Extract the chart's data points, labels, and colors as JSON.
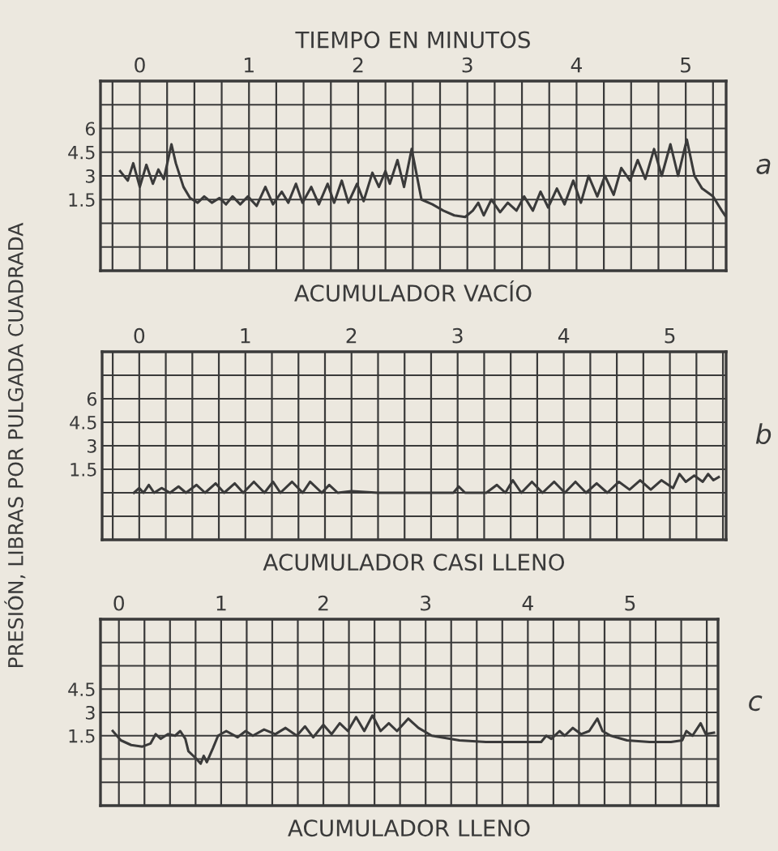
{
  "chart_data": [
    {
      "type": "line",
      "title": "TIEMPO EN MINUTOS",
      "xlabel": "ACUMULADOR VACÍO",
      "annotations": [
        "a"
      ],
      "grid": true,
      "line_style": "solid",
      "xlim": [
        -0.36,
        5.37
      ],
      "ylim": [
        -3,
        9
      ],
      "xticks": [
        {
          "value": -0.25,
          "label": null
        },
        0,
        {
          "value": 0.25,
          "label": null
        },
        {
          "value": 0.5,
          "label": null
        },
        {
          "value": 0.75,
          "label": null
        },
        1,
        {
          "value": 1.25,
          "label": null
        },
        {
          "value": 1.5,
          "label": null
        },
        {
          "value": 1.75,
          "label": null
        },
        2,
        {
          "value": 2.25,
          "label": null
        },
        {
          "value": 2.5,
          "label": null
        },
        {
          "value": 2.75,
          "label": null
        },
        3,
        {
          "value": 3.25,
          "label": null
        },
        {
          "value": 3.5,
          "label": null
        },
        {
          "value": 3.75,
          "label": null
        },
        4,
        {
          "value": 4.25,
          "label": null
        },
        {
          "value": 4.5,
          "label": null
        },
        {
          "value": 4.75,
          "label": null
        },
        5,
        {
          "value": 5.25,
          "label": null
        }
      ],
      "yticks": [
        {
          "value": -1.5,
          "label": null
        },
        {
          "value": 0,
          "label": null
        },
        1.5,
        3,
        4.5,
        6,
        {
          "value": 7.5,
          "label": null
        }
      ],
      "series": [
        {
          "color": "#3a3a3a",
          "x": [
            -0.18,
            -0.11,
            -0.06,
            0.0,
            0.06,
            0.12,
            0.17,
            0.22,
            0.29,
            0.33,
            0.4,
            0.46,
            0.53,
            0.59,
            0.66,
            0.73,
            0.79,
            0.85,
            0.92,
            0.99,
            1.07,
            1.15,
            1.22,
            1.3,
            1.36,
            1.43,
            1.49,
            1.57,
            1.64,
            1.72,
            1.78,
            1.85,
            1.91,
            1.99,
            2.05,
            2.13,
            2.19,
            2.25,
            2.29,
            2.36,
            2.42,
            2.49,
            2.58,
            2.68,
            2.78,
            2.88,
            2.98,
            3.05,
            3.1,
            3.15,
            3.22,
            3.3,
            3.37,
            3.45,
            3.52,
            3.6,
            3.67,
            3.74,
            3.82,
            3.89,
            3.97,
            4.04,
            4.11,
            4.19,
            4.26,
            4.34,
            4.41,
            4.49,
            4.56,
            4.63,
            4.71,
            4.78,
            4.86,
            4.93,
            5.01,
            5.08,
            5.15,
            5.25,
            5.33,
            5.36
          ],
          "values": [
            3.3,
            2.7,
            3.8,
            2.3,
            3.7,
            2.5,
            3.4,
            2.8,
            5.0,
            3.8,
            2.3,
            1.6,
            1.3,
            1.7,
            1.3,
            1.6,
            1.2,
            1.7,
            1.2,
            1.7,
            1.1,
            2.3,
            1.2,
            2.0,
            1.3,
            2.5,
            1.3,
            2.3,
            1.2,
            2.5,
            1.3,
            2.7,
            1.3,
            2.5,
            1.4,
            3.2,
            2.3,
            3.3,
            2.5,
            4.0,
            2.3,
            4.7,
            1.5,
            1.2,
            0.8,
            0.5,
            0.4,
            0.8,
            1.3,
            0.5,
            1.5,
            0.7,
            1.3,
            0.8,
            1.7,
            0.8,
            2.0,
            1.0,
            2.2,
            1.2,
            2.7,
            1.3,
            3.0,
            1.7,
            3.0,
            1.8,
            3.5,
            2.7,
            4.0,
            2.8,
            4.7,
            3.0,
            5.0,
            3.0,
            5.3,
            3.0,
            2.2,
            1.7,
            0.8,
            0.5
          ]
        }
      ]
    },
    {
      "type": "line",
      "xlabel": "ACUMULADOR CASI LLENO",
      "ylabel": "PRESIÓN, LIBRAS POR PULGADA CUADRADA",
      "annotations": [
        "b"
      ],
      "grid": true,
      "line_style": "solid",
      "xlim": [
        -0.35,
        5.53
      ],
      "ylim": [
        -3,
        9
      ],
      "xticks": [
        {
          "value": -0.25,
          "label": null
        },
        0,
        {
          "value": 0.25,
          "label": null
        },
        {
          "value": 0.5,
          "label": null
        },
        {
          "value": 0.75,
          "label": null
        },
        1,
        {
          "value": 1.25,
          "label": null
        },
        {
          "value": 1.5,
          "label": null
        },
        {
          "value": 1.75,
          "label": null
        },
        2,
        {
          "value": 2.25,
          "label": null
        },
        {
          "value": 2.5,
          "label": null
        },
        {
          "value": 2.75,
          "label": null
        },
        3,
        {
          "value": 3.25,
          "label": null
        },
        {
          "value": 3.5,
          "label": null
        },
        {
          "value": 3.75,
          "label": null
        },
        4,
        {
          "value": 4.25,
          "label": null
        },
        {
          "value": 4.5,
          "label": null
        },
        {
          "value": 4.75,
          "label": null
        },
        5,
        {
          "value": 5.25,
          "label": null
        },
        {
          "value": 5.5,
          "label": null
        }
      ],
      "yticks": [
        {
          "value": -1.5,
          "label": null
        },
        {
          "value": 0,
          "label": null
        },
        1.5,
        3,
        4.5,
        6,
        {
          "value": 7.5,
          "label": null
        }
      ],
      "series": [
        {
          "color": "#3a3a3a",
          "x": [
            -0.05,
            0.0,
            0.04,
            0.09,
            0.14,
            0.21,
            0.29,
            0.37,
            0.44,
            0.54,
            0.62,
            0.72,
            0.8,
            0.9,
            0.98,
            1.08,
            1.18,
            1.26,
            1.33,
            1.44,
            1.54,
            1.61,
            1.72,
            1.79,
            1.87,
            2.0,
            2.25,
            2.51,
            2.76,
            2.96,
            3.01,
            3.07,
            3.27,
            3.37,
            3.45,
            3.52,
            3.6,
            3.7,
            3.8,
            3.91,
            4.01,
            4.11,
            4.21,
            4.31,
            4.41,
            4.52,
            4.62,
            4.72,
            4.82,
            4.92,
            5.03,
            5.09,
            5.15,
            5.23,
            5.31,
            5.36,
            5.41,
            5.46
          ],
          "values": [
            0.0,
            0.3,
            0.0,
            0.5,
            0.0,
            0.3,
            0.0,
            0.4,
            0.0,
            0.5,
            0.0,
            0.6,
            0.0,
            0.6,
            0.0,
            0.7,
            0.0,
            0.7,
            0.0,
            0.7,
            0.0,
            0.7,
            0.0,
            0.5,
            0.0,
            0.1,
            0.0,
            0.0,
            0.0,
            0.0,
            0.4,
            0.0,
            0.0,
            0.5,
            0.0,
            0.8,
            0.0,
            0.7,
            0.0,
            0.7,
            0.0,
            0.7,
            0.0,
            0.6,
            0.0,
            0.7,
            0.2,
            0.8,
            0.2,
            0.8,
            0.3,
            1.2,
            0.7,
            1.1,
            0.7,
            1.2,
            0.8,
            1.0
          ]
        }
      ]
    },
    {
      "type": "line",
      "xlabel": "ACUMULADOR LLENO",
      "annotations": [
        "c"
      ],
      "grid": true,
      "line_style": "solid",
      "xlim": [
        -0.18,
        5.86
      ],
      "ylim": [
        -3,
        9
      ],
      "xticks": [
        0,
        {
          "value": 0.25,
          "label": null
        },
        {
          "value": 0.5,
          "label": null
        },
        {
          "value": 0.75,
          "label": null
        },
        1,
        {
          "value": 1.25,
          "label": null
        },
        {
          "value": 1.5,
          "label": null
        },
        {
          "value": 1.75,
          "label": null
        },
        2,
        {
          "value": 2.25,
          "label": null
        },
        {
          "value": 2.5,
          "label": null
        },
        {
          "value": 2.75,
          "label": null
        },
        3,
        {
          "value": 3.25,
          "label": null
        },
        {
          "value": 3.5,
          "label": null
        },
        {
          "value": 3.75,
          "label": null
        },
        4,
        {
          "value": 4.25,
          "label": null
        },
        {
          "value": 4.5,
          "label": null
        },
        {
          "value": 4.75,
          "label": null
        },
        5,
        {
          "value": 5.25,
          "label": null
        },
        {
          "value": 5.5,
          "label": null
        },
        {
          "value": 5.75,
          "label": null
        }
      ],
      "yticks": [
        {
          "value": -1.5,
          "label": null
        },
        {
          "value": 0,
          "label": null
        },
        1.5,
        3,
        4.5,
        {
          "value": 6,
          "label": null
        },
        {
          "value": 7.5,
          "label": null
        }
      ],
      "series": [
        {
          "color": "#3a3a3a",
          "x": [
            -0.06,
            0.02,
            0.12,
            0.23,
            0.31,
            0.36,
            0.41,
            0.48,
            0.55,
            0.6,
            0.65,
            0.68,
            0.76,
            0.8,
            0.83,
            0.86,
            0.92,
            0.97,
            1.05,
            1.16,
            1.24,
            1.31,
            1.42,
            1.53,
            1.63,
            1.74,
            1.82,
            1.9,
            2.0,
            2.08,
            2.16,
            2.24,
            2.32,
            2.4,
            2.48,
            2.56,
            2.64,
            2.72,
            2.83,
            2.93,
            3.06,
            3.33,
            3.59,
            3.86,
            4.13,
            4.18,
            4.23,
            4.31,
            4.36,
            4.44,
            4.52,
            4.6,
            4.68,
            4.73,
            4.81,
            4.97,
            5.19,
            5.4,
            5.51,
            5.55,
            5.61,
            5.69,
            5.74,
            5.82
          ],
          "values": [
            1.8,
            1.2,
            0.9,
            0.8,
            1.0,
            1.6,
            1.3,
            1.6,
            1.5,
            1.8,
            1.3,
            0.5,
            0.0,
            -0.3,
            0.2,
            -0.2,
            0.7,
            1.5,
            1.8,
            1.4,
            1.8,
            1.5,
            1.9,
            1.6,
            2.0,
            1.5,
            2.1,
            1.4,
            2.2,
            1.6,
            2.3,
            1.8,
            2.7,
            1.8,
            2.8,
            1.8,
            2.3,
            1.8,
            2.6,
            2.0,
            1.5,
            1.2,
            1.1,
            1.1,
            1.1,
            1.5,
            1.3,
            1.8,
            1.5,
            2.0,
            1.6,
            1.8,
            2.6,
            1.8,
            1.5,
            1.2,
            1.1,
            1.1,
            1.2,
            1.8,
            1.5,
            2.3,
            1.6,
            1.7
          ]
        }
      ]
    }
  ]
}
